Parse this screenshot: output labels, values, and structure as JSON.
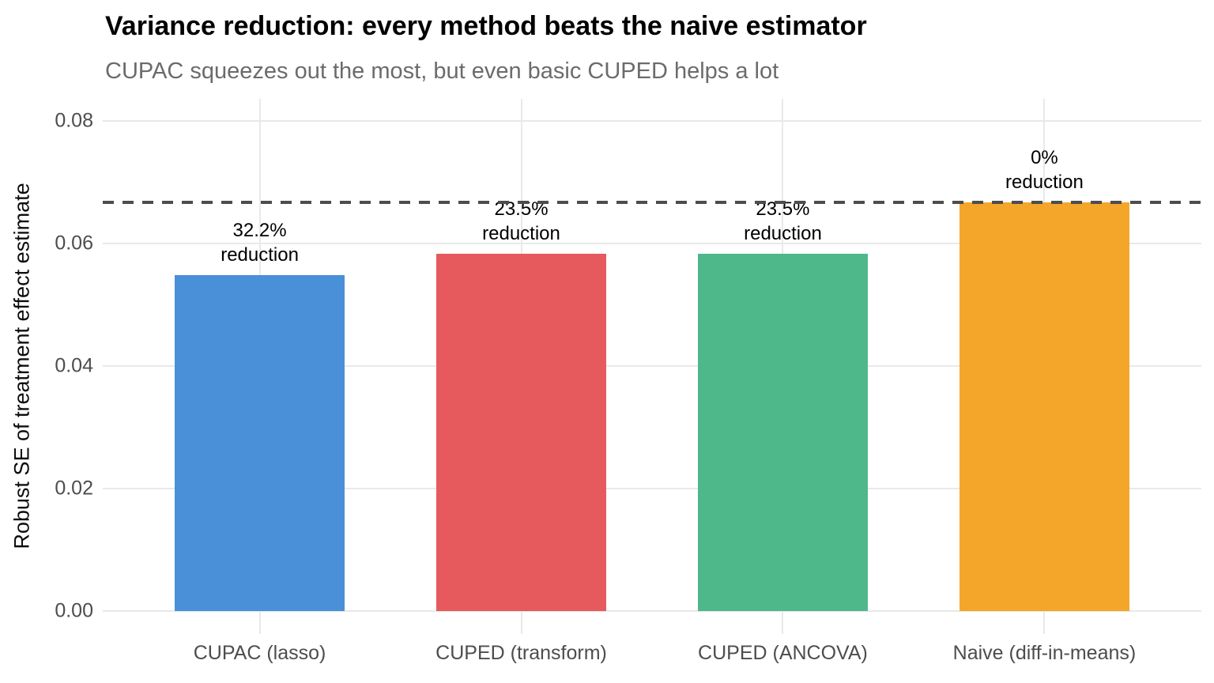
{
  "header": {
    "title": "Variance reduction: every method beats the naive estimator",
    "subtitle": "CUPAC squeezes out the most, but even basic CUPED helps a lot"
  },
  "chart_data": {
    "type": "bar",
    "title": "Variance reduction: every method beats the naive estimator",
    "subtitle": "CUPAC squeezes out the most, but even basic CUPED helps a lot",
    "xlabel": "",
    "ylabel": "Robust SE of treatment effect estimate",
    "categories": [
      "CUPAC (lasso)",
      "CUPED (transform)",
      "CUPED (ANCOVA)",
      "Naive (diff-in-means)"
    ],
    "values": [
      0.0549,
      0.0583,
      0.0583,
      0.0667
    ],
    "bar_annotations": [
      [
        "32.2%",
        "reduction"
      ],
      [
        "23.5%",
        "reduction"
      ],
      [
        "23.5%",
        "reduction"
      ],
      [
        "0%",
        "reduction"
      ]
    ],
    "bar_colors": [
      "#4A90D9",
      "#E65A5E",
      "#4EB88A",
      "#F4A62A"
    ],
    "yticks": [
      0.0,
      0.02,
      0.04,
      0.06,
      0.08
    ],
    "ytick_labels": [
      "0.00",
      "0.02",
      "0.04",
      "0.06",
      "0.08"
    ],
    "ylim": [
      -0.0037,
      0.0836
    ],
    "reference_line": {
      "value": 0.0667,
      "style": "dashed",
      "color": "#4D4D4D"
    },
    "grid": {
      "horizontal_major": true,
      "vertical_at_categories": true,
      "minor": false
    },
    "legend": "none"
  },
  "colors": {
    "background": "#FFFFFF",
    "gridline": "#E9E9E9",
    "axis_text": "#4D4D4D",
    "title_text": "#000000",
    "subtitle_text": "#6B6B6B",
    "annotation_text": "#000000",
    "reference_line": "#4D4D4D"
  }
}
